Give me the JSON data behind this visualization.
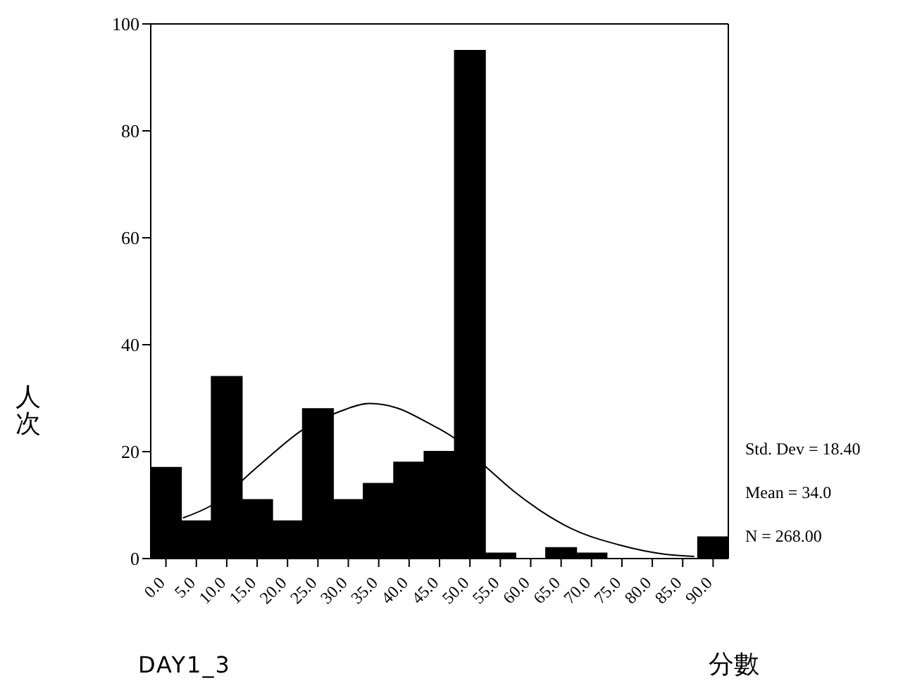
{
  "chart_data": {
    "type": "histogram",
    "title": "DAY1_3",
    "xlabel": "分數",
    "ylabel": "人次",
    "bins": [
      -2.5,
      2.5,
      7.5,
      12.5,
      17.5,
      22.5,
      27.5,
      32.5,
      37.5,
      42.5,
      47.5,
      52.5,
      57.5,
      62.5,
      67.5,
      72.5,
      77.5,
      82.5,
      87.5,
      92.5
    ],
    "values": [
      17,
      7,
      34,
      11,
      7,
      28,
      11,
      14,
      18,
      20,
      95,
      1,
      0,
      2,
      1,
      0,
      0,
      0,
      4
    ],
    "color": "#000000",
    "series": [
      {
        "type": "line",
        "color": "#000000",
        "x": [
          2.8,
          7.6,
          15.4,
          22.5,
          28.8,
          33.5,
          38.2,
          42.9,
          47.6,
          52.3,
          57.1,
          61.8,
          66.5,
          74.4,
          82.2,
          86.9
        ],
        "values": [
          7.6,
          10.0,
          17.5,
          24.1,
          27.6,
          29.0,
          28.1,
          25.5,
          22.4,
          17.5,
          12.7,
          8.8,
          5.7,
          2.6,
          0.8,
          0.4
        ]
      }
    ],
    "xlim": [
      -2.5,
      92.5
    ],
    "xticks": [
      {
        "value": 0,
        "label": "0.0"
      },
      {
        "value": 5,
        "label": "5.0"
      },
      {
        "value": 10,
        "label": "10.0"
      },
      {
        "value": 15,
        "label": "15.0"
      },
      {
        "value": 20,
        "label": "20.0"
      },
      {
        "value": 25,
        "label": "25.0"
      },
      {
        "value": 30,
        "label": "30.0"
      },
      {
        "value": 35,
        "label": "35.0"
      },
      {
        "value": 40,
        "label": "40.0"
      },
      {
        "value": 45,
        "label": "45.0"
      },
      {
        "value": 50,
        "label": "50.0"
      },
      {
        "value": 55,
        "label": "55.0"
      },
      {
        "value": 60,
        "label": "60.0"
      },
      {
        "value": 65,
        "label": "65.0"
      },
      {
        "value": 70,
        "label": "70.0"
      },
      {
        "value": 75,
        "label": "75.0"
      },
      {
        "value": 80,
        "label": "80.0"
      },
      {
        "value": 85,
        "label": "85.0"
      },
      {
        "value": 90,
        "label": "90.0"
      }
    ],
    "ylim": [
      0,
      100
    ],
    "yticks": [
      0,
      20,
      40,
      60,
      80,
      100
    ],
    "annotations": [
      "Std. Dev = 18.40",
      "Mean = 34.0",
      "N = 268.00"
    ]
  }
}
